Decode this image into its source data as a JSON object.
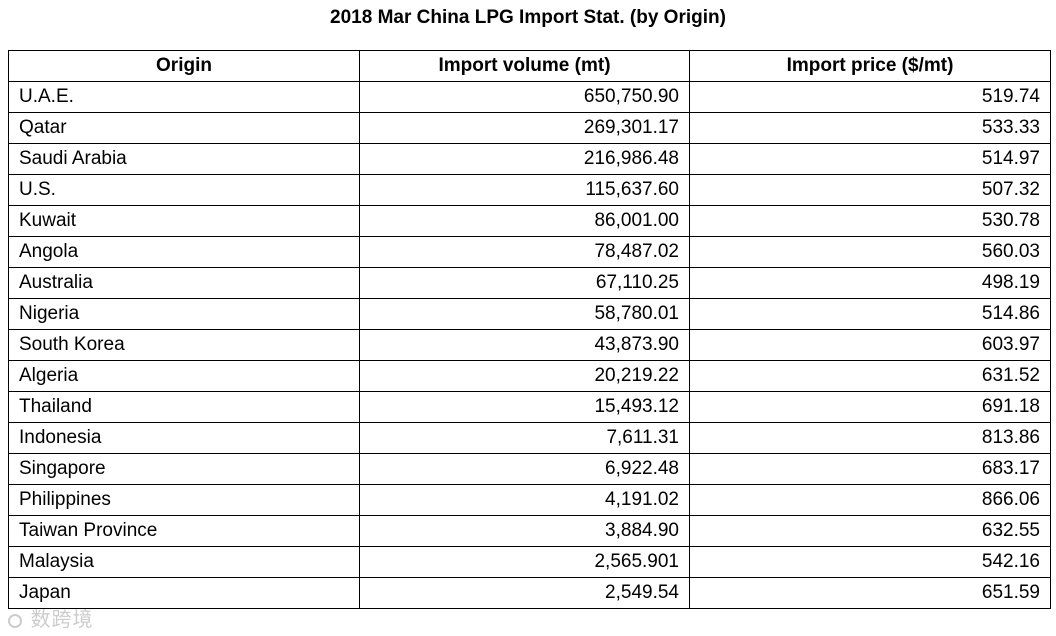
{
  "title": "2018 Mar China LPG Import Stat. (by Origin)",
  "columns": {
    "origin": "Origin",
    "volume": "Import volume (mt)",
    "price": "Import price ($/mt)"
  },
  "rows": [
    {
      "origin": "U.A.E.",
      "volume": "650,750.90",
      "price": "519.74"
    },
    {
      "origin": "Qatar",
      "volume": "269,301.17",
      "price": "533.33"
    },
    {
      "origin": "Saudi Arabia",
      "volume": "216,986.48",
      "price": "514.97"
    },
    {
      "origin": "U.S.",
      "volume": "115,637.60",
      "price": "507.32"
    },
    {
      "origin": "Kuwait",
      "volume": "86,001.00",
      "price": "530.78"
    },
    {
      "origin": "Angola",
      "volume": "78,487.02",
      "price": "560.03"
    },
    {
      "origin": "Australia",
      "volume": "67,110.25",
      "price": "498.19"
    },
    {
      "origin": "Nigeria",
      "volume": "58,780.01",
      "price": "514.86"
    },
    {
      "origin": "South Korea",
      "volume": "43,873.90",
      "price": "603.97"
    },
    {
      "origin": "Algeria",
      "volume": "20,219.22",
      "price": "631.52"
    },
    {
      "origin": "Thailand",
      "volume": "15,493.12",
      "price": "691.18"
    },
    {
      "origin": "Indonesia",
      "volume": "7,611.31",
      "price": "813.86"
    },
    {
      "origin": "Singapore",
      "volume": "6,922.48",
      "price": "683.17"
    },
    {
      "origin": "Philippines",
      "volume": "4,191.02",
      "price": "866.06"
    },
    {
      "origin": "Taiwan Province",
      "volume": "3,884.90",
      "price": "632.55"
    },
    {
      "origin": "Malaysia",
      "volume": "2,565.901",
      "price": "542.16"
    },
    {
      "origin": "Japan",
      "volume": "2,549.54",
      "price": "651.59"
    }
  ],
  "watermark": {
    "icon": "watermark-logo-icon",
    "text": "数跨境"
  }
}
